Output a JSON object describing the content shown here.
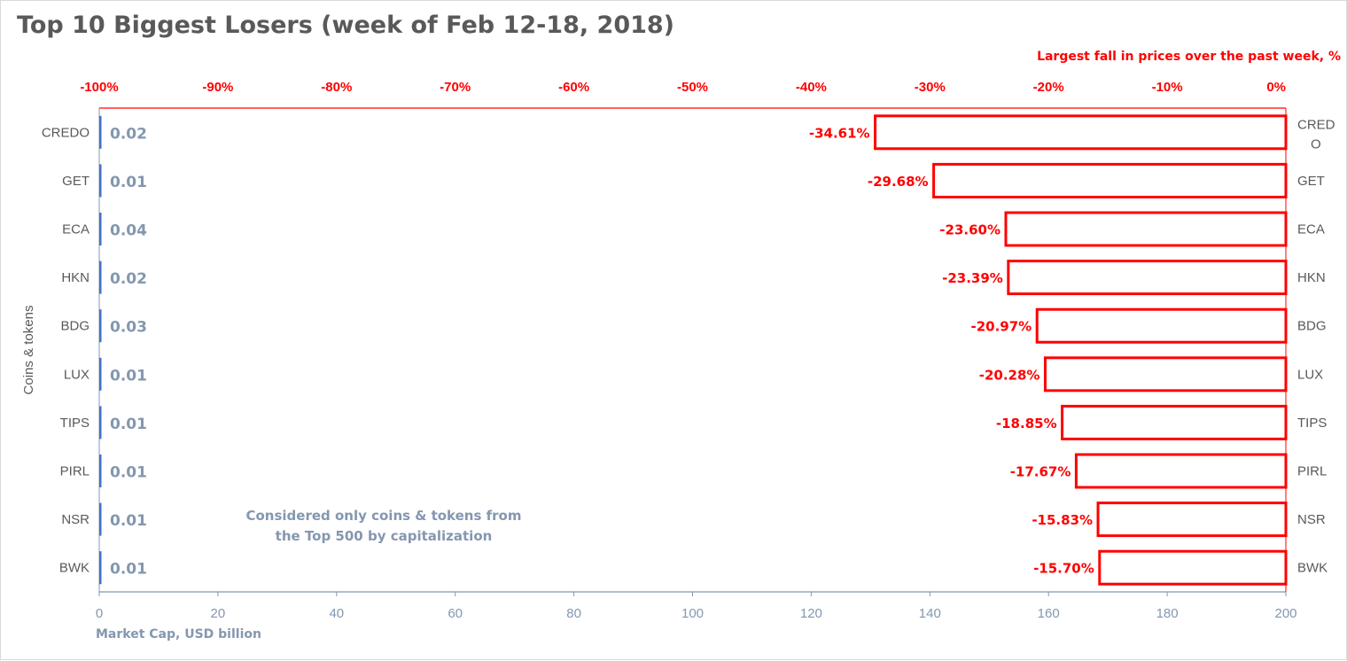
{
  "title": "Top 10 Biggest Losers (week of Feb 12-18, 2018)",
  "note": {
    "line1": "Considered only coins & tokens from",
    "line2": "the Top 500 by capitalization"
  },
  "colors": {
    "accent": "#ff0000",
    "cap": "#8497b0",
    "cap_bar": "#4472c4",
    "text": "#595959"
  },
  "chart_data": {
    "type": "bar",
    "orientation": "horizontal",
    "categories": [
      "CREDO",
      "GET",
      "ECA",
      "HKN",
      "BDG",
      "LUX",
      "TIPS",
      "PIRL",
      "NSR",
      "BWK"
    ],
    "right_category_labels": [
      "CRED O",
      "GET",
      "ECA",
      "HKN",
      "BDG",
      "LUX",
      "TIPS",
      "PIRL",
      "NSR",
      "BWK"
    ],
    "series": [
      {
        "name": "Largest fall in prices over the past week, %",
        "axis": "top",
        "values": [
          -34.61,
          -29.68,
          -23.6,
          -23.39,
          -20.97,
          -20.28,
          -18.85,
          -17.67,
          -15.83,
          -15.7
        ],
        "data_labels": [
          "-34.61%",
          "-29.68%",
          "-23.60%",
          "-23.39%",
          "-20.97%",
          "-20.28%",
          "-18.85%",
          "-17.67%",
          "-15.83%",
          "-15.70%"
        ]
      },
      {
        "name": "Market Cap,  USD billion",
        "axis": "bottom",
        "values": [
          0.02,
          0.01,
          0.04,
          0.02,
          0.03,
          0.01,
          0.01,
          0.01,
          0.01,
          0.01
        ],
        "data_labels": [
          "0.02",
          "0.01",
          "0.04",
          "0.02",
          "0.03",
          "0.01",
          "0.01",
          "0.01",
          "0.01",
          "0.01"
        ]
      }
    ],
    "top_axis": {
      "label": "Largest fall in prices over the past week, %",
      "range": [
        -100,
        0
      ],
      "ticks": [
        -100,
        -90,
        -80,
        -70,
        -60,
        -50,
        -40,
        -30,
        -20,
        -10,
        0
      ],
      "tick_labels": [
        "-100%",
        "-90%",
        "-80%",
        "-70%",
        "-60%",
        "-50%",
        "-40%",
        "-30%",
        "-20%",
        "-10%",
        "0%"
      ]
    },
    "bottom_axis": {
      "label": "Market Cap,  USD billion",
      "range": [
        0,
        200
      ],
      "ticks": [
        0,
        20,
        40,
        60,
        80,
        100,
        120,
        140,
        160,
        180,
        200
      ],
      "tick_labels": [
        "0",
        "20",
        "40",
        "60",
        "80",
        "100",
        "120",
        "140",
        "160",
        "180",
        "200"
      ]
    },
    "ylabel": "Coins & tokens",
    "grid": false,
    "legend": "none"
  }
}
